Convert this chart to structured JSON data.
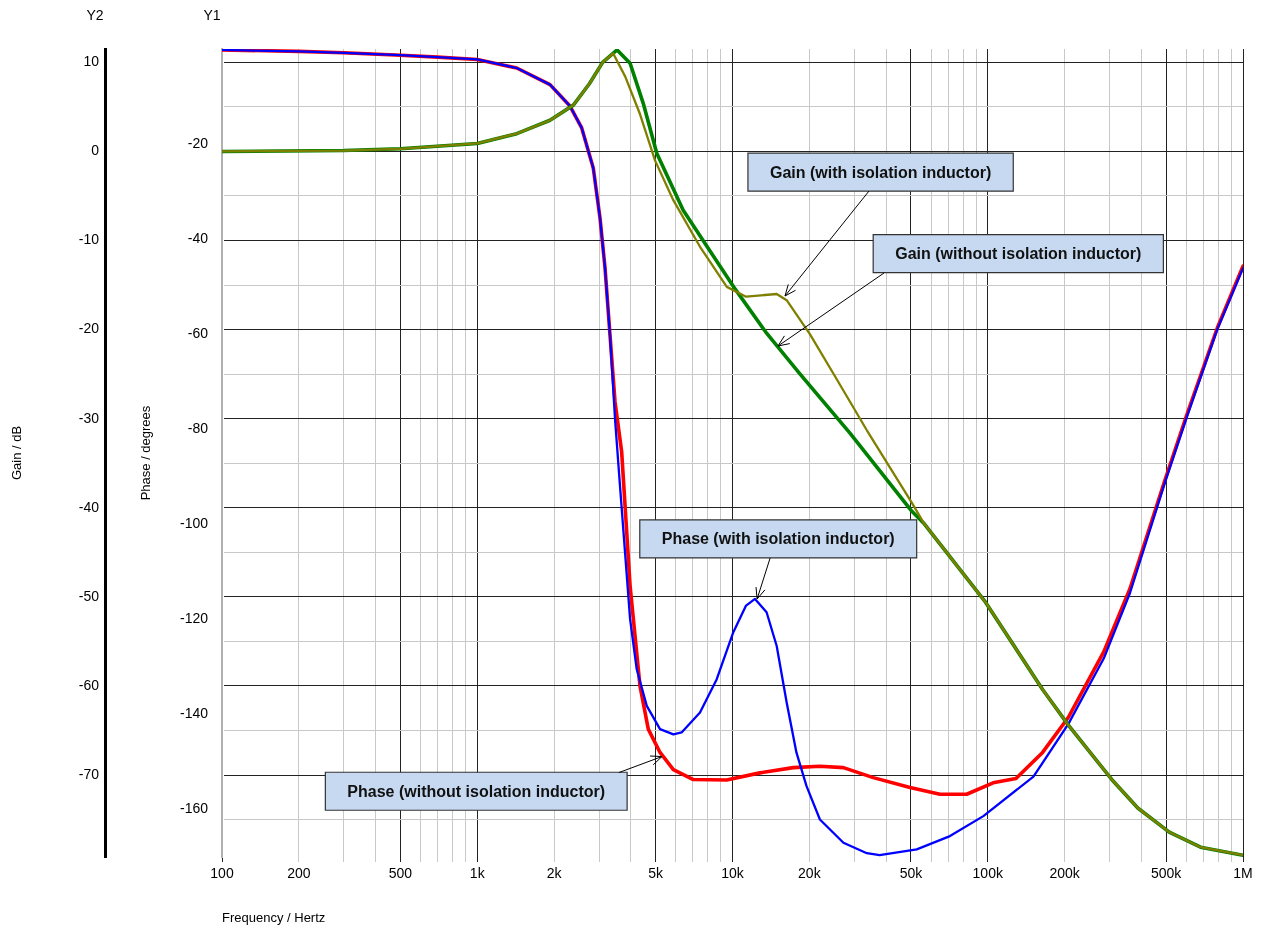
{
  "chart_data": {
    "type": "line",
    "xlabel": "Frequency / Hertz",
    "ylabel": "Phase / degrees",
    "y2label": "Gain / dB",
    "log": "x",
    "grid": true,
    "legend": false,
    "marker": "none",
    "xlim": [
      100,
      1000000
    ],
    "xticks": [
      100,
      200,
      {
        "value": 300,
        "label": null
      },
      {
        "value": 400,
        "label": null
      },
      500,
      {
        "value": 600,
        "label": null
      },
      {
        "value": 700,
        "label": null
      },
      {
        "value": 800,
        "label": null
      },
      {
        "value": 900,
        "label": null
      },
      {
        "value": 1000,
        "label": "1k"
      },
      {
        "value": 2000,
        "label": "2k"
      },
      {
        "value": 3000,
        "label": null
      },
      {
        "value": 4000,
        "label": null
      },
      {
        "value": 5000,
        "label": "5k"
      },
      {
        "value": 6000,
        "label": null
      },
      {
        "value": 7000,
        "label": null
      },
      {
        "value": 8000,
        "label": null
      },
      {
        "value": 9000,
        "label": null
      },
      {
        "value": 10000,
        "label": "10k"
      },
      {
        "value": 20000,
        "label": "20k"
      },
      {
        "value": 30000,
        "label": null
      },
      {
        "value": 40000,
        "label": null
      },
      {
        "value": 50000,
        "label": "50k"
      },
      {
        "value": 60000,
        "label": null
      },
      {
        "value": 70000,
        "label": null
      },
      {
        "value": 80000,
        "label": null
      },
      {
        "value": 90000,
        "label": null
      },
      {
        "value": 100000,
        "label": "100k"
      },
      {
        "value": 200000,
        "label": "200k"
      },
      {
        "value": 300000,
        "label": null
      },
      {
        "value": 400000,
        "label": null
      },
      {
        "value": 500000,
        "label": "500k"
      },
      {
        "value": 600000,
        "label": null
      },
      {
        "value": 700000,
        "label": null
      },
      {
        "value": 800000,
        "label": null
      },
      {
        "value": 900000,
        "label": null
      },
      {
        "value": 1000000,
        "label": "1M"
      }
    ],
    "ylim": [
      -170,
      0
    ],
    "yticks": [
      -20,
      -40,
      -60,
      -80,
      -100,
      -120,
      -140,
      -160
    ],
    "y2lim": [
      -79.2,
      11.5
    ],
    "y2ticks": [
      10,
      {
        "value": 5,
        "label": null
      },
      0,
      {
        "value": -5,
        "label": null
      },
      -10,
      {
        "value": -15,
        "label": null
      },
      -20,
      {
        "value": -25,
        "label": null
      },
      -30,
      {
        "value": -35,
        "label": null
      },
      -40,
      {
        "value": -45,
        "label": null
      },
      -50,
      {
        "value": -55,
        "label": null
      },
      -60,
      {
        "value": -65,
        "label": null
      },
      -70,
      {
        "value": -75,
        "label": null
      }
    ],
    "series": [
      {
        "color": "#ff0000",
        "x": [
          100,
          200,
          300,
          500,
          700,
          1000,
          1428,
          1928,
          2308,
          2566,
          2849,
          3027,
          3167,
          3312,
          3465,
          3680,
          3969,
          4340,
          4678,
          5200,
          5866,
          7023,
          9490,
          12800,
          17300,
          22000,
          27200,
          35600,
          49600,
          65000,
          82700,
          105000,
          129000,
          164000,
          207000,
          285000,
          361000,
          494000,
          602000,
          793000,
          1000000
        ],
        "values": [
          -0.2,
          -0.5,
          -0.8,
          -1.3,
          -1.7,
          -2.2,
          -4.0,
          -7.5,
          -12.0,
          -16.6,
          -25.1,
          -35.6,
          -46.1,
          -60.2,
          -74.2,
          -84.8,
          -112.9,
          -134.0,
          -143.1,
          -148.0,
          -151.6,
          -153.7,
          -153.8,
          -152.3,
          -151.2,
          -150.9,
          -151.2,
          -153.3,
          -155.4,
          -156.8,
          -156.8,
          -154.4,
          -153.5,
          -148.0,
          -140.6,
          -126.8,
          -113.5,
          -90.8,
          -77.0,
          -58.7,
          -45.7
        ]
      },
      {
        "color": "#0000ff",
        "x": [
          100,
          200,
          300,
          500,
          700,
          1000,
          1428,
          1928,
          2308,
          2566,
          2849,
          3027,
          3167,
          3312,
          3465,
          3623,
          3793,
          3969,
          4215,
          4614,
          5200,
          5866,
          6317,
          7459,
          8675,
          10075,
          11300,
          12250,
          13600,
          14900,
          16300,
          17800,
          19500,
          22000,
          27200,
          33600,
          37700,
          52700,
          71100,
          96100,
          151000,
          207000,
          285000,
          361000,
          494000,
          602000,
          793000,
          1000000
        ],
        "values": [
          -0.2,
          -0.5,
          -0.8,
          -1.3,
          -1.7,
          -2.2,
          -4.0,
          -7.5,
          -12.0,
          -16.6,
          -25.1,
          -35.6,
          -46.1,
          -60.2,
          -77.8,
          -91.8,
          -105.9,
          -119.9,
          -130.5,
          -138.2,
          -143.1,
          -144.2,
          -143.8,
          -139.6,
          -132.6,
          -122.7,
          -117.1,
          -115.7,
          -118.5,
          -125.6,
          -137.5,
          -148.0,
          -155.1,
          -162.1,
          -167.0,
          -169.2,
          -169.6,
          -168.4,
          -165.6,
          -161.4,
          -153.1,
          -142.0,
          -128.2,
          -114.4,
          -91.3,
          -77.5,
          -59.0,
          -46.1
        ]
      },
      {
        "color": "#008000",
        "axis": "y2",
        "x": [
          100,
          300,
          500,
          1000,
          1428,
          1928,
          2380,
          2750,
          3100,
          3530,
          3970,
          4470,
          5050,
          6410,
          10100,
          13600,
          18300,
          28800,
          50100,
          56400,
          98000,
          164000,
          207000,
          306000,
          387000,
          514000,
          682000,
          1000000
        ],
        "values": [
          0,
          0.1,
          0.3,
          0.9,
          2.0,
          3.5,
          5.2,
          7.6,
          10.0,
          11.4,
          9.9,
          5.4,
          -0.2,
          -6.6,
          -15.2,
          -20.4,
          -24.9,
          -31.6,
          -40.3,
          -41.8,
          -50.6,
          -60.4,
          -64.4,
          -70.5,
          -73.7,
          -76.4,
          -78.1,
          -79.0
        ]
      },
      {
        "color": "#808000",
        "axis": "y2",
        "x": [
          100,
          300,
          500,
          1000,
          1428,
          1928,
          2380,
          2750,
          3100,
          3410,
          3800,
          4340,
          4970,
          5870,
          7460,
          9500,
          11300,
          14900,
          16300,
          20100,
          24800,
          33600,
          50100,
          56400,
          98000,
          164000,
          207000,
          306000,
          387000,
          514000,
          682000,
          1000000
        ],
        "values": [
          0,
          0.1,
          0.3,
          0.9,
          2.0,
          3.5,
          5.2,
          7.6,
          10.0,
          11.0,
          8.4,
          4.2,
          -1.0,
          -5.5,
          -10.7,
          -15.2,
          -16.3,
          -16.0,
          -16.7,
          -20.5,
          -24.9,
          -31.3,
          -39.3,
          -41.8,
          -50.6,
          -60.4,
          -64.4,
          -70.5,
          -73.7,
          -76.4,
          -78.1,
          -79.0
        ]
      }
    ],
    "annotations": [
      "Y2",
      "Y1",
      {
        "text": "Gain (with isolation inductor)",
        "x": 16000,
        "y": -52
      },
      {
        "text": "Gain (without isolation inductor)",
        "x": 15100,
        "y": -62.4
      },
      {
        "text": "Phase (with isolation inductor)",
        "x": 12500,
        "y": -115.7
      },
      {
        "text": "Phase (without isolation inductor)",
        "x": 5300,
        "y": -148.8
      }
    ]
  }
}
